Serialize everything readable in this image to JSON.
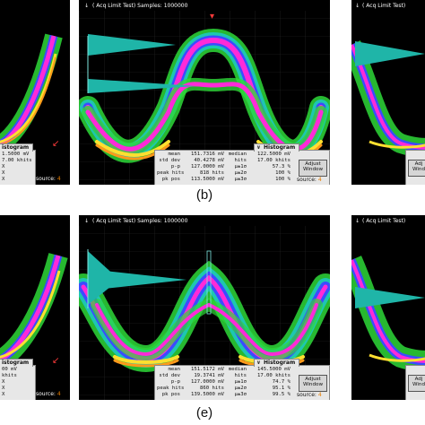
{
  "captions": {
    "b": "(b)",
    "e": "(e)"
  },
  "scope_b": {
    "title": "( Acq Limit Test)  Samples: 1000000",
    "histogram_title": "Histogram",
    "adjust_window": "Adjust Window",
    "source_label": "source:",
    "source_value": "4",
    "stats_left": [
      {
        "label": "mean",
        "value": "151.7316 mV"
      },
      {
        "label": "std dev",
        "value": "40.4278 mV"
      },
      {
        "label": "p-p",
        "value": "127.0000 mV"
      },
      {
        "label": "peak hits",
        "value": "818 hits"
      },
      {
        "label": "pk pos",
        "value": "113.5000 mV"
      }
    ],
    "stats_right": [
      {
        "label": "median",
        "value": "122.5000 mV"
      },
      {
        "label": "hits",
        "value": "17.00 khits"
      },
      {
        "label": "µ±1σ",
        "value": "57.3 %"
      },
      {
        "label": "µ±2σ",
        "value": "100 %"
      },
      {
        "label": "µ±3σ",
        "value": "100 %"
      }
    ]
  },
  "scope_e": {
    "title": "( Acq Limit Test)  Samples: 1000000",
    "histogram_title": "Histogram",
    "adjust_window": "Adjust Window",
    "source_label": "source:",
    "source_value": "4",
    "stats_left": [
      {
        "label": "mean",
        "value": "151.5172 mV"
      },
      {
        "label": "std dev",
        "value": "19.3741 mV"
      },
      {
        "label": "p-p",
        "value": "127.0000 mV"
      },
      {
        "label": "peak hits",
        "value": "860 hits"
      },
      {
        "label": "pk pos",
        "value": "139.5000 mV"
      }
    ],
    "stats_right": [
      {
        "label": "median",
        "value": "145.5000 mV"
      },
      {
        "label": "hits",
        "value": "17.00 khits"
      },
      {
        "label": "µ±1σ",
        "value": "74.7 %"
      },
      {
        "label": "µ±2σ",
        "value": "95.1 %"
      },
      {
        "label": "µ±3σ",
        "value": "99.5 %"
      }
    ]
  },
  "left_partial_top": {
    "histogram_title": "istogram",
    "rows": [
      "1.5000 mV",
      "7.00 khits",
      "X",
      "X",
      "X"
    ],
    "source_label": "source:",
    "source_value": "4"
  },
  "left_partial_bottom": {
    "histogram_title": "istogram",
    "rows": [
      "00 mV",
      "khits",
      "X",
      "X",
      "X"
    ],
    "source_label": "source:",
    "source_value": "4"
  },
  "right_partial_top": {
    "title": "( Acq Limit Test)",
    "adjust_label": "Adj Wind"
  },
  "right_partial_bottom": {
    "title": "( Acq Limit Test)",
    "adjust_label": "Adj Wind"
  },
  "colors": {
    "screen": "#000000",
    "green": "#2ed838",
    "cyan": "#1ec8c0",
    "blue": "#3a4cff",
    "magenta": "#ff2ad8",
    "yellow": "#ffe030",
    "orange": "#ff9a1a",
    "histogram": "#1fb5a8",
    "source_number": "#e67d00",
    "marker": "#ff3b3b"
  }
}
